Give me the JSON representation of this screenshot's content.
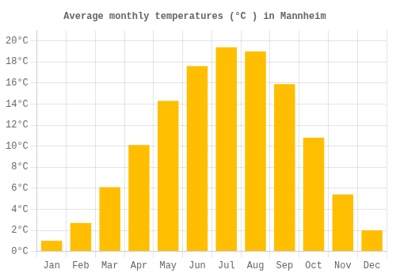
{
  "chart_data": {
    "type": "bar",
    "title": "Average monthly temperatures (°C ) in Mannheim",
    "categories": [
      "Jan",
      "Feb",
      "Mar",
      "Apr",
      "May",
      "Jun",
      "Jul",
      "Aug",
      "Sep",
      "Oct",
      "Nov",
      "Dec"
    ],
    "values": [
      1.0,
      2.7,
      6.1,
      10.1,
      14.3,
      17.6,
      19.4,
      19.0,
      15.9,
      10.8,
      5.4,
      2.0
    ],
    "color": "#FFBE00",
    "ylim": [
      0,
      21
    ],
    "yticks": [
      {
        "value": 0,
        "label": "0°C"
      },
      {
        "value": 2,
        "label": "2°C"
      },
      {
        "value": 4,
        "label": "4°C"
      },
      {
        "value": 6,
        "label": "6°C"
      },
      {
        "value": 8,
        "label": "8°C"
      },
      {
        "value": 10,
        "label": "10°C"
      },
      {
        "value": 12,
        "label": "12°C"
      },
      {
        "value": 14,
        "label": "14°C"
      },
      {
        "value": 16,
        "label": "16°C"
      },
      {
        "value": 18,
        "label": "18°C"
      },
      {
        "value": 20,
        "label": "20°C"
      }
    ],
    "grid": true
  }
}
